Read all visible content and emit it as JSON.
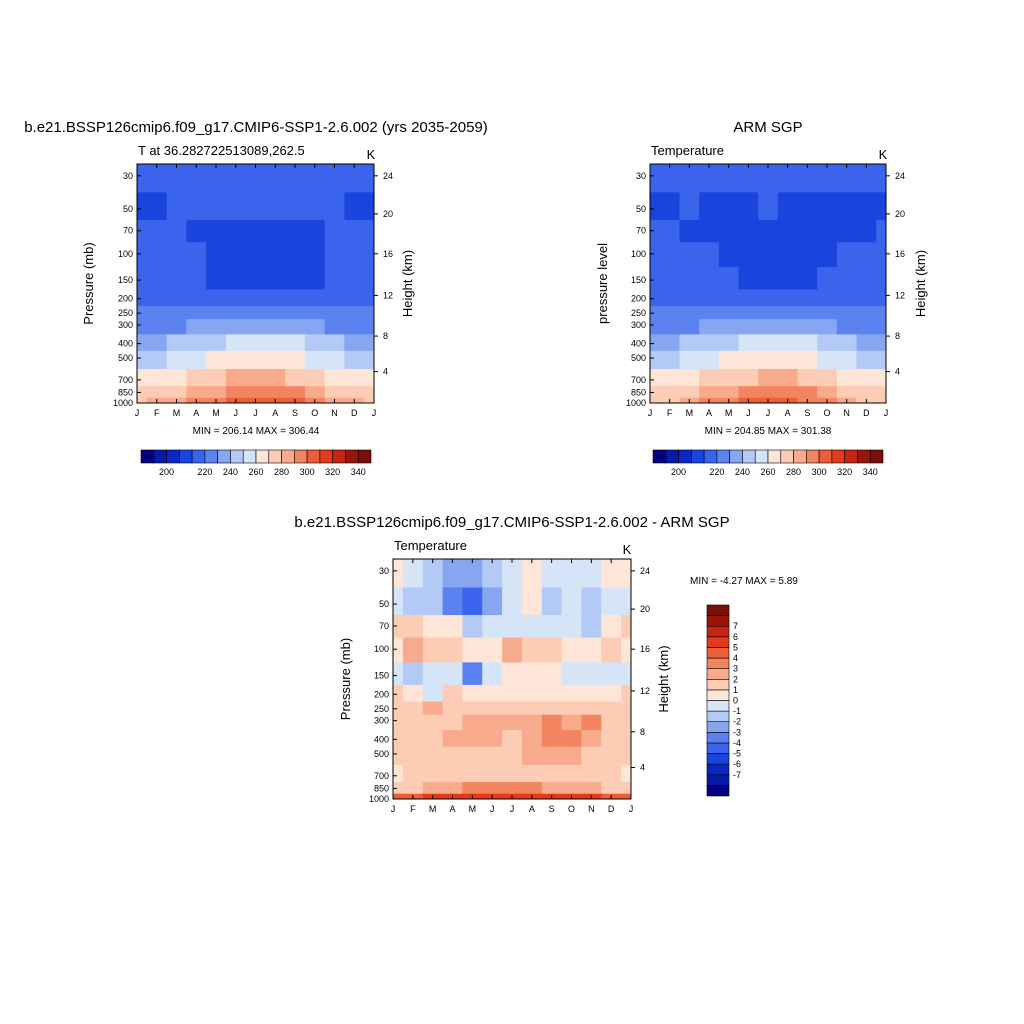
{
  "chart_data": [
    {
      "type": "heatmap",
      "title": "b.e21.BSSP126cmip6.f09_g17.CMIP6-SSP1-2.6.002 (yrs 2035-2059)",
      "subtitle": "T at 36.282722513089,262.5",
      "units": "K",
      "ylabel": "Pressure (mb)",
      "ylabel_right": "Height (km)",
      "x": [
        "J",
        "F",
        "M",
        "A",
        "M",
        "J",
        "J",
        "A",
        "S",
        "O",
        "N",
        "D",
        "J"
      ],
      "y": [
        30,
        50,
        70,
        100,
        150,
        200,
        250,
        300,
        400,
        500,
        700,
        850,
        1000
      ],
      "y_ticks": [
        "30",
        "50",
        "70",
        "100",
        "150",
        "200",
        "250",
        "300",
        "400",
        "500",
        "700",
        "850",
        "1000"
      ],
      "height_ticks": [
        {
          "km": 24,
          "mb": 30
        },
        {
          "km": 20,
          "mb": 54
        },
        {
          "km": 16,
          "mb": 100
        },
        {
          "km": 12,
          "mb": 190
        },
        {
          "km": 8,
          "mb": 356
        },
        {
          "km": 4,
          "mb": 616
        }
      ],
      "yscale": "log",
      "summary": "MIN = 206.14 MAX = 306.44",
      "colorbar_levels": [
        195,
        200,
        205,
        210,
        220,
        230,
        240,
        250,
        260,
        270,
        280,
        290,
        300,
        310,
        320,
        330,
        340
      ],
      "colorbar_ticks": [
        "200",
        "220",
        "240",
        "260",
        "280",
        "300",
        "320",
        "340"
      ],
      "values": [
        [
          212,
          213,
          212,
          213,
          214,
          215,
          216,
          216,
          214,
          213,
          212,
          212,
          212
        ],
        [
          208,
          208,
          211,
          210,
          210,
          211,
          211,
          211,
          211,
          211,
          210,
          209,
          208
        ],
        [
          211,
          211,
          210,
          208,
          208,
          208,
          208,
          208,
          208,
          209,
          210,
          211,
          211
        ],
        [
          212,
          212,
          211,
          210,
          208,
          207,
          207,
          207,
          207,
          208,
          210,
          212,
          212
        ],
        [
          213,
          213,
          212,
          211,
          209,
          208,
          207,
          207,
          208,
          209,
          211,
          213,
          213
        ],
        [
          216,
          216,
          217,
          218,
          218,
          219,
          219,
          218,
          218,
          217,
          217,
          216,
          216
        ],
        [
          221,
          221,
          222,
          224,
          226,
          228,
          228,
          228,
          227,
          225,
          222,
          221,
          221
        ],
        [
          227,
          228,
          229,
          232,
          235,
          238,
          238,
          238,
          237,
          233,
          229,
          228,
          227
        ],
        [
          238,
          239,
          241,
          245,
          249,
          253,
          255,
          254,
          252,
          247,
          242,
          239,
          238
        ],
        [
          247,
          248,
          251,
          255,
          260,
          264,
          266,
          266,
          264,
          258,
          252,
          249,
          247
        ],
        [
          262,
          263,
          266,
          270,
          275,
          280,
          282,
          282,
          279,
          274,
          268,
          264,
          262
        ],
        [
          271,
          272,
          276,
          282,
          289,
          293,
          296,
          295,
          291,
          284,
          277,
          273,
          271
        ],
        [
          278,
          280,
          285,
          292,
          299,
          303,
          306,
          305,
          300,
          292,
          285,
          280,
          278
        ]
      ]
    },
    {
      "type": "heatmap",
      "title": "ARM SGP",
      "subtitle": "Temperature",
      "units": "K",
      "ylabel": "pressure level",
      "ylabel_right": "Height (km)",
      "x": [
        "J",
        "F",
        "M",
        "A",
        "M",
        "J",
        "J",
        "A",
        "S",
        "O",
        "N",
        "D",
        "J"
      ],
      "y": [
        30,
        50,
        70,
        100,
        150,
        200,
        250,
        300,
        400,
        500,
        700,
        850,
        1000
      ],
      "y_ticks": [
        "30",
        "50",
        "70",
        "100",
        "150",
        "200",
        "250",
        "300",
        "400",
        "500",
        "700",
        "850",
        "1000"
      ],
      "height_ticks": [
        {
          "km": 24,
          "mb": 30
        },
        {
          "km": 20,
          "mb": 54
        },
        {
          "km": 16,
          "mb": 100
        },
        {
          "km": 12,
          "mb": 190
        },
        {
          "km": 8,
          "mb": 356
        },
        {
          "km": 4,
          "mb": 616
        }
      ],
      "yscale": "log",
      "summary": "MIN = 204.85 MAX = 301.38",
      "colorbar_levels": [
        195,
        200,
        205,
        210,
        220,
        230,
        240,
        250,
        260,
        270,
        280,
        290,
        300,
        310,
        320,
        330,
        340
      ],
      "colorbar_ticks": [
        "200",
        "220",
        "240",
        "260",
        "280",
        "300",
        "320",
        "340"
      ],
      "values": [
        [
          212,
          212,
          211,
          211,
          212,
          213,
          213,
          213,
          212,
          211,
          211,
          211,
          212
        ],
        [
          209,
          209,
          210,
          209,
          209,
          209,
          210,
          209,
          209,
          209,
          209,
          209,
          209
        ],
        [
          210,
          210,
          209,
          208,
          207,
          206,
          206,
          206,
          207,
          208,
          209,
          209,
          210
        ],
        [
          212,
          211,
          210,
          210,
          208,
          206,
          205,
          206,
          207,
          209,
          210,
          211,
          212
        ],
        [
          213,
          213,
          212,
          211,
          210,
          208,
          207,
          208,
          209,
          210,
          211,
          213,
          213
        ],
        [
          216,
          217,
          217,
          218,
          218,
          218,
          218,
          218,
          218,
          217,
          217,
          216,
          216
        ],
        [
          221,
          221,
          222,
          224,
          226,
          227,
          228,
          228,
          226,
          224,
          222,
          221,
          221
        ],
        [
          227,
          228,
          229,
          232,
          235,
          237,
          238,
          237,
          236,
          232,
          229,
          228,
          227
        ],
        [
          238,
          239,
          241,
          245,
          249,
          253,
          254,
          253,
          251,
          246,
          242,
          239,
          238
        ],
        [
          247,
          248,
          251,
          255,
          260,
          264,
          265,
          265,
          263,
          257,
          252,
          249,
          247
        ],
        [
          262,
          263,
          266,
          270,
          275,
          279,
          281,
          281,
          278,
          273,
          268,
          264,
          262
        ],
        [
          271,
          272,
          276,
          281,
          287,
          292,
          294,
          294,
          290,
          283,
          277,
          273,
          271
        ],
        [
          277,
          279,
          284,
          290,
          296,
          300,
          301,
          301,
          297,
          290,
          284,
          279,
          277
        ]
      ]
    },
    {
      "type": "heatmap",
      "title": "b.e21.BSSP126cmip6.f09_g17.CMIP6-SSP1-2.6.002 - ARM SGP",
      "subtitle": "Temperature",
      "units": "K",
      "ylabel": "Pressure (mb)",
      "ylabel_right": "Height (km)",
      "x": [
        "J",
        "F",
        "M",
        "A",
        "M",
        "J",
        "J",
        "A",
        "S",
        "O",
        "N",
        "D",
        "J"
      ],
      "y": [
        30,
        50,
        70,
        100,
        150,
        200,
        250,
        300,
        400,
        500,
        700,
        850,
        1000
      ],
      "y_ticks": [
        "30",
        "50",
        "70",
        "100",
        "150",
        "200",
        "250",
        "300",
        "400",
        "500",
        "700",
        "850",
        "1000"
      ],
      "height_ticks": [
        {
          "km": 24,
          "mb": 30
        },
        {
          "km": 20,
          "mb": 54
        },
        {
          "km": 16,
          "mb": 100
        },
        {
          "km": 12,
          "mb": 190
        },
        {
          "km": 8,
          "mb": 356
        },
        {
          "km": 4,
          "mb": 616
        }
      ],
      "yscale": "log",
      "summary": "MIN =  -4.27 MAX =   5.89",
      "colorbar_levels": [
        -8,
        -7,
        -6,
        -5,
        -4,
        -3,
        -2,
        -1,
        0,
        1,
        2,
        3,
        4,
        5,
        6,
        7,
        8
      ],
      "colorbar_ticks": [
        "-7",
        "-6",
        "-5",
        "-4",
        "-3",
        "-2",
        "-1",
        "0",
        "1",
        "2",
        "3",
        "4",
        "5",
        "6",
        "7"
      ],
      "values": [
        [
          0.3,
          -0.5,
          -1.2,
          -2.2,
          -2.5,
          -1.5,
          -0.5,
          0.5,
          -0.5,
          -1,
          -0.5,
          0.3,
          0.2
        ],
        [
          -0.8,
          -1.2,
          -2,
          -3.5,
          -4.2,
          -2.5,
          -1,
          0.3,
          -2,
          -1,
          -2,
          -0.5,
          -0.8
        ],
        [
          1.2,
          1.5,
          0.6,
          0.3,
          -1.2,
          -1,
          -0.5,
          -0.3,
          -0.6,
          -0.4,
          -1.5,
          0.5,
          1.2
        ],
        [
          0.8,
          2.5,
          1.6,
          1.5,
          0.5,
          0.5,
          2.5,
          1.5,
          1.2,
          0.5,
          0.8,
          1.5,
          0.8
        ],
        [
          -0.8,
          -1.5,
          -0.5,
          -1,
          -3.2,
          -0.5,
          0.5,
          0.5,
          0.2,
          -0.5,
          -1,
          -0.5,
          -0.8
        ],
        [
          1.2,
          0.5,
          -0.3,
          1.2,
          0.8,
          0.8,
          0.8,
          0.5,
          0.8,
          0.5,
          0.6,
          0.8,
          1.2
        ],
        [
          1.5,
          1.2,
          2.2,
          1.2,
          1.5,
          1.5,
          1.2,
          1.5,
          1.8,
          1.6,
          1.2,
          1.5,
          1.5
        ],
        [
          1.2,
          1.2,
          1.5,
          1.5,
          2.2,
          2.5,
          2,
          2.5,
          3.5,
          2.5,
          3.2,
          1.5,
          1.2
        ],
        [
          1.5,
          1.5,
          1.8,
          2,
          2,
          2,
          1.8,
          2.8,
          3.4,
          3,
          2.5,
          1.5,
          1.5
        ],
        [
          1.5,
          1.8,
          1.5,
          1.8,
          1.8,
          1.8,
          1.5,
          2.2,
          2.2,
          2.2,
          1.8,
          1.2,
          1.5
        ],
        [
          0.6,
          1.2,
          1.5,
          1.8,
          1.5,
          1.2,
          1.2,
          1.5,
          1.5,
          1.5,
          1.2,
          1,
          0.6
        ],
        [
          1.2,
          1.5,
          2,
          2.5,
          3,
          3.2,
          3.2,
          3,
          2.8,
          2.2,
          2,
          1.5,
          1.2
        ],
        [
          4.5,
          4.8,
          5,
          5.2,
          5.5,
          5.8,
          5.9,
          5.8,
          5.6,
          5,
          5,
          4.5,
          4.5
        ]
      ]
    }
  ],
  "palettes": {
    "absolute": [
      "#050080",
      "#0519a8",
      "#0a28c8",
      "#1a44de",
      "#3a64ec",
      "#5b82ee",
      "#86a6f2",
      "#b3c9f6",
      "#d6e4f8",
      "#fde6d7",
      "#fcccb4",
      "#f8ab8c",
      "#f28460",
      "#ec5e38",
      "#e23a1a",
      "#c52410",
      "#9a140a",
      "#7a0f08"
    ],
    "difference": [
      "#050080",
      "#0519a8",
      "#0a28c8",
      "#1a44de",
      "#3a64ec",
      "#5b82ee",
      "#86a6f2",
      "#b3c9f6",
      "#d6e4f8",
      "#fde6d7",
      "#fcccb4",
      "#f8ab8c",
      "#f28460",
      "#ec5e38",
      "#e23a1a",
      "#c52410",
      "#9a140a",
      "#7a0f08"
    ]
  }
}
